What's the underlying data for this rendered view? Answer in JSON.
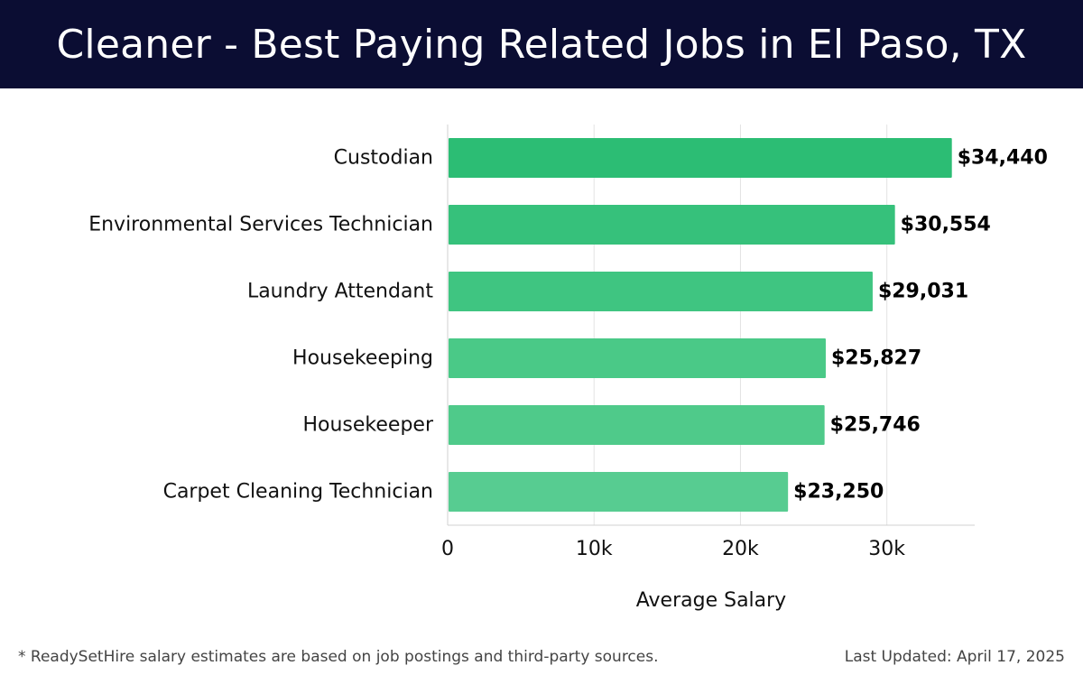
{
  "header": {
    "title": "Cleaner - Best Paying Related Jobs in El Paso, TX"
  },
  "chart_data": {
    "type": "bar",
    "orientation": "horizontal",
    "title": "Cleaner - Best Paying Related Jobs in El Paso, TX",
    "xlabel": "Average Salary",
    "ylabel": "",
    "categories": [
      "Custodian",
      "Environmental Services Technician",
      "Laundry Attendant",
      "Housekeeping",
      "Housekeeper",
      "Carpet Cleaning Technician"
    ],
    "values": [
      34440,
      30554,
      29031,
      25827,
      25746,
      23250
    ],
    "value_labels": [
      "$34,440",
      "$30,554",
      "$29,031",
      "$25,827",
      "$25,746",
      "$23,250"
    ],
    "xlim": [
      0,
      36000
    ],
    "xticks": [
      0,
      10000,
      20000,
      30000
    ],
    "xtick_labels": [
      "0",
      "10k",
      "20k",
      "30k"
    ],
    "grid": true,
    "bar_colors": [
      "#2cbd74",
      "#36c17b",
      "#3fc581",
      "#4ac987",
      "#4fca8a",
      "#57cc91"
    ]
  },
  "footer": {
    "note": "* ReadySetHire salary estimates are based on job postings and third-party sources.",
    "updated": "Last Updated: April 17, 2025"
  }
}
